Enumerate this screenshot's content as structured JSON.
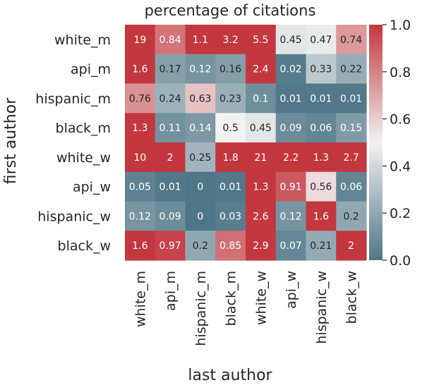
{
  "chart_data": {
    "type": "heatmap",
    "title": "percentage of citations",
    "xlabel": "last author",
    "ylabel": "first author",
    "x_categories": [
      "white_m",
      "api_m",
      "hispanic_m",
      "black_m",
      "white_w",
      "api_w",
      "hispanic_w",
      "black_w"
    ],
    "y_categories": [
      "white_m",
      "api_m",
      "hispanic_m",
      "black_m",
      "white_w",
      "api_w",
      "hispanic_w",
      "black_w"
    ],
    "values": [
      [
        19,
        0.84,
        1.1,
        3.2,
        5.5,
        0.45,
        0.47,
        0.74
      ],
      [
        1.6,
        0.17,
        0.12,
        0.16,
        2.4,
        0.02,
        0.33,
        0.22
      ],
      [
        0.76,
        0.24,
        0.63,
        0.23,
        0.1,
        0.01,
        0.01,
        0.01
      ],
      [
        1.3,
        0.11,
        0.14,
        0.5,
        0.45,
        0.09,
        0.06,
        0.15
      ],
      [
        10,
        2,
        0.25,
        1.8,
        21,
        2.2,
        1.3,
        2.7
      ],
      [
        0.05,
        0.01,
        0,
        0.01,
        1.3,
        0.91,
        0.56,
        0.06
      ],
      [
        0.12,
        0.09,
        0,
        0.03,
        2.6,
        0.12,
        1.6,
        0.2
      ],
      [
        1.6,
        0.97,
        0.2,
        0.85,
        2.9,
        0.07,
        0.21,
        2
      ]
    ],
    "colorbar": {
      "range": [
        0.0,
        1.0
      ],
      "ticks": [
        "0.0",
        "0.2",
        "0.4",
        "0.6",
        "0.8",
        "1.0"
      ],
      "colors": {
        "low": "#4f7687",
        "mid": "#f2f2f2",
        "high": "#c3383f"
      }
    },
    "annotated": true
  }
}
